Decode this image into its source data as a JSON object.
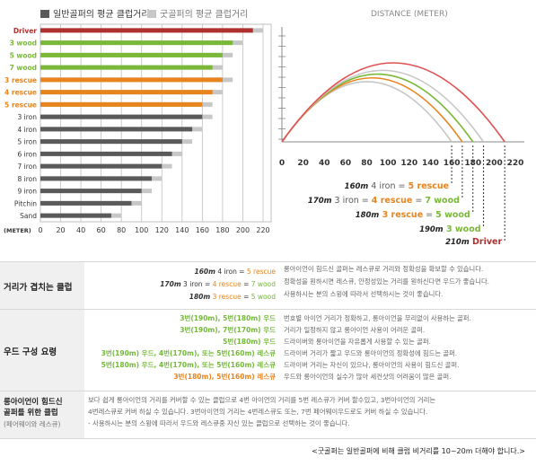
{
  "colors": {
    "driver": "#b0302f",
    "wood": "#7ab838",
    "rescue": "#e8841e",
    "iron": "#5a5a5a",
    "avg": "#c7c7c7",
    "border": "#bfbfbf",
    "grid": "#bfbfbf"
  },
  "chart_data": [
    {
      "type": "bar",
      "legend": [
        "일반골퍼의 평균 클럽거리",
        "굿골퍼의 평균 클럽거리"
      ],
      "xlabel": "(METER)",
      "xticks": [
        0,
        20,
        40,
        60,
        80,
        100,
        120,
        140,
        160,
        180,
        200,
        220
      ],
      "xlim": [
        0,
        220
      ],
      "categories": [
        "Driver",
        "3 wood",
        "5 wood",
        "7 wood",
        "3 rescue",
        "4 rescue",
        "5 rescue",
        "3 iron",
        "4 iron",
        "5 iron",
        "6 iron",
        "7 iron",
        "8 iron",
        "9 iron",
        "Pitchin",
        "Sand"
      ],
      "category_colors": [
        "driver",
        "wood",
        "wood",
        "wood",
        "rescue",
        "rescue",
        "rescue",
        "iron",
        "iron",
        "iron",
        "iron",
        "iron",
        "iron",
        "iron",
        "iron",
        "iron"
      ],
      "series": [
        {
          "name": "일반골퍼의 평균 클럽거리",
          "values": [
            210,
            190,
            180,
            170,
            180,
            170,
            160,
            160,
            150,
            140,
            130,
            120,
            110,
            100,
            90,
            70
          ]
        },
        {
          "name": "굿골퍼의 평균 클럽거리",
          "values": [
            220,
            200,
            190,
            180,
            190,
            180,
            170,
            170,
            160,
            150,
            140,
            130,
            120,
            110,
            100,
            80
          ]
        }
      ]
    },
    {
      "type": "line",
      "title": "DISTANCE (METER)",
      "xticks": [
        0,
        20,
        40,
        60,
        80,
        100,
        120,
        140,
        160,
        180,
        200,
        220
      ],
      "xlim": [
        0,
        220
      ],
      "series": [
        {
          "name": "160m",
          "end": 160,
          "color": "#c7c7c7"
        },
        {
          "name": "170m",
          "end": 170,
          "color": "#e8841e"
        },
        {
          "name": "180m",
          "end": 180,
          "color": "#7ab838"
        },
        {
          "name": "190m",
          "end": 190,
          "color": "#c7c7c7"
        },
        {
          "name": "210m",
          "end": 210,
          "color": "#e05050"
        }
      ],
      "annotations": [
        {
          "dist": "160m",
          "parts": [
            {
              "t": " 4 iron = ",
              "c": "iron"
            },
            {
              "t": "5 rescue",
              "c": "rescue"
            }
          ]
        },
        {
          "dist": "170m",
          "parts": [
            {
              "t": " 3 iron = ",
              "c": "iron"
            },
            {
              "t": "4 rescue",
              "c": "rescue"
            },
            {
              "t": " = ",
              "c": "iron"
            },
            {
              "t": "7 wood",
              "c": "wood"
            }
          ]
        },
        {
          "dist": "180m",
          "parts": [
            {
              "t": " 3 rescue",
              "c": "rescue"
            },
            {
              "t": " = ",
              "c": "iron"
            },
            {
              "t": "5 wood",
              "c": "wood"
            }
          ]
        },
        {
          "dist": "190m",
          "parts": [
            {
              "t": " 3 wood",
              "c": "wood"
            }
          ]
        },
        {
          "dist": "210m",
          "parts": [
            {
              "t": " Driver",
              "c": "driver"
            }
          ]
        }
      ]
    }
  ],
  "table": {
    "row1": {
      "title": "거리가 겹치는 클럽",
      "lines": [
        {
          "dist": "160m",
          "a": " 4 iron = ",
          "b": "5 rescue",
          "c": "",
          "d": ""
        },
        {
          "dist": "170m",
          "a": " 3 iron = ",
          "b": "4 rescue",
          "c": " = ",
          "d": "7 wood"
        },
        {
          "dist": "180m",
          "a": " 3 rescue",
          "b": "",
          "c": " = ",
          "d": "5 wood"
        }
      ],
      "desc": [
        "롱아이언이 힘드신 골퍼는 레스큐로 거리와 정확성을 확보할 수 있습니다.",
        "정확성을 원하시면 레스큐, 안정성있는 거리를 원하신다면 우드가 좋습니다.",
        "사용하시는 분의 스윙에 따라서 선택하시는 것이 좋습니다."
      ]
    },
    "row2": {
      "title": "우드 구성 요령",
      "lines": [
        "3번(190m), 5번(180m) 우드",
        "3번(190m), 7번(170m) 우드",
        "5번(180m) 우드",
        "3번(190m) 우드, 4번(170m), 또는 5번(160m) 레스큐",
        "5번(180m) 우드, 4번(170m), 또는 5번(160m) 레스큐",
        "3번(180m), 5번(160m) 레스큐"
      ],
      "desc": [
        "번호별 아이언 거리가 정확하고, 롱아이언을 무리없이 사용하는 골퍼.",
        "거리가 일정하지 않고 롱아이언 사용이 어려운 골퍼.",
        "드라이버와 롱아이언을 자유롭게 사용할 수 있는 골퍼.",
        "드라이버 거리가 짧고 우드와 롱아이언의 정확성에 힘드는 골퍼.",
        "드라이버 거리는 자신이 있으나, 롱아이언의 사용이 힘드신 골퍼.",
        "우드와 롱아이언의 실수가 많아 세컨샷의 어려움이 많은 골퍼."
      ]
    },
    "row3": {
      "title_lines": [
        "롱아이언이 힘드신",
        "골퍼를 위한 클럽"
      ],
      "subtitle": "(페어웨이와 레스큐)",
      "desc": [
        "보다 쉽게 롱아이언의 거리를 커버할 수 있는 클럽으로 4번 아이언의 거리를 5번 레스큐가 커버 할수있고, 3번아이언의 거리는",
        "4번레스큐로 커버 하실 수 있습니다. 3번아이언의 거리는 4번레스큐도 또는, 7번 페어웨이우드로도 커버 하실 수 있습니다.",
        "- 사용하시는 분의 스윙에 따라서 우드와 레스큐중 자신 있는 클럽으로 선택하는 것이 좋습니다."
      ]
    }
  },
  "footer": "<굿골퍼는 일반골퍼에 비해 클럽 비거리를 10~20m 더해야 합니다.>"
}
